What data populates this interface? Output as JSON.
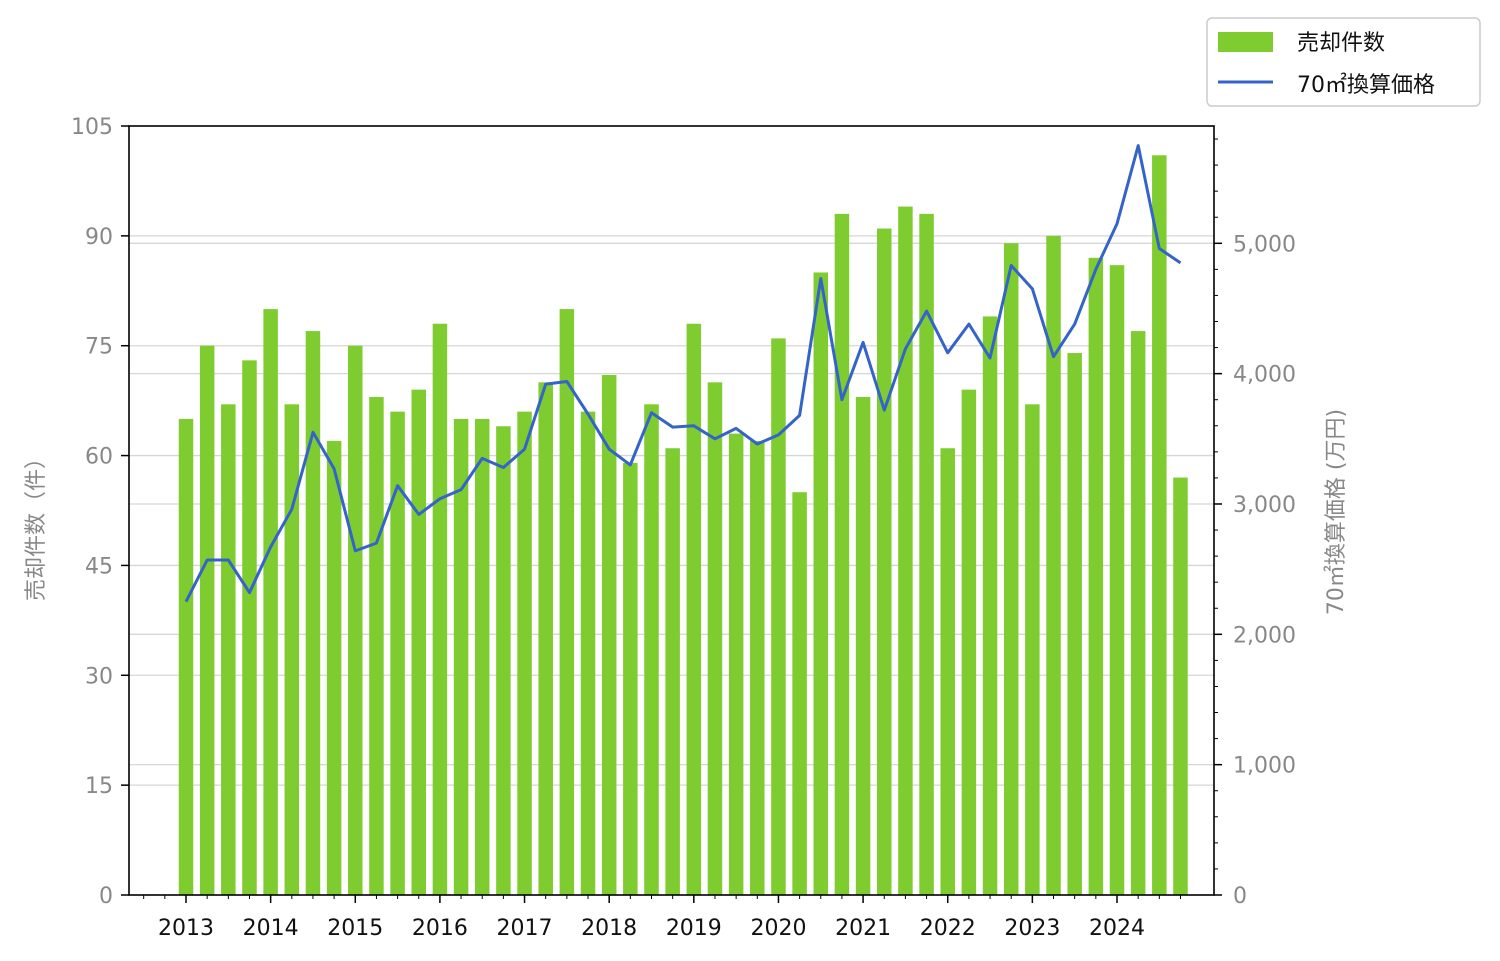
{
  "chart_data": {
    "type": "bar",
    "x_tick_labels": [
      "2013",
      "2014",
      "2015",
      "2016",
      "2017",
      "2018",
      "2019",
      "2020",
      "2021",
      "2022",
      "2023",
      "2024"
    ],
    "left_axis": {
      "label": "売却件数（件）",
      "ylim": [
        0,
        105
      ],
      "ticks": [
        "0",
        "15",
        "30",
        "45",
        "60",
        "75",
        "90",
        "105"
      ],
      "tick_values": [
        0,
        15,
        30,
        45,
        60,
        75,
        90,
        105
      ]
    },
    "right_axis": {
      "label": "70㎡換算価格 (万円)",
      "ylim": [
        0,
        5900
      ],
      "ticks": [
        "0",
        "1,000",
        "2,000",
        "3,000",
        "4,000",
        "5,000"
      ],
      "tick_values": [
        0,
        1000,
        2000,
        3000,
        4000,
        5000
      ]
    },
    "grid": "horizontal",
    "legend": {
      "position": "top-right",
      "entries": [
        {
          "label": "売却件数",
          "kind": "bar",
          "color": "#7fcc30"
        },
        {
          "label": "70㎡換算価格",
          "kind": "line",
          "color": "#3464c8"
        }
      ]
    },
    "series": [
      {
        "name": "売却件数",
        "kind": "bar",
        "axis": "left",
        "color": "#7fcc30",
        "x": [
          2013.0,
          2013.25,
          2013.5,
          2013.75,
          2014.0,
          2014.25,
          2014.5,
          2014.75,
          2015.0,
          2015.25,
          2015.5,
          2015.75,
          2016.0,
          2016.25,
          2016.5,
          2016.75,
          2017.0,
          2017.25,
          2017.5,
          2017.75,
          2018.0,
          2018.25,
          2018.5,
          2018.75,
          2019.0,
          2019.25,
          2019.5,
          2019.75,
          2020.0,
          2020.25,
          2020.5,
          2020.75,
          2021.0,
          2021.25,
          2021.5,
          2021.75,
          2022.0,
          2022.25,
          2022.5,
          2022.75,
          2023.0,
          2023.25,
          2023.5,
          2023.75,
          2024.0,
          2024.25,
          2024.5,
          2024.75
        ],
        "values": [
          65,
          75,
          67,
          73,
          80,
          67,
          77,
          62,
          75,
          68,
          66,
          69,
          78,
          65,
          65,
          64,
          66,
          70,
          80,
          66,
          71,
          59,
          67,
          61,
          78,
          70,
          63,
          62,
          76,
          55,
          85,
          93,
          68,
          91,
          94,
          93,
          61,
          69,
          79,
          89,
          67,
          90,
          74,
          87,
          86,
          77,
          101,
          57
        ]
      },
      {
        "name": "70㎡換算価格",
        "kind": "line",
        "axis": "right",
        "color": "#3464c8",
        "x": [
          2013.0,
          2013.25,
          2013.5,
          2013.75,
          2014.0,
          2014.25,
          2014.5,
          2014.75,
          2015.0,
          2015.25,
          2015.5,
          2015.75,
          2016.0,
          2016.25,
          2016.5,
          2016.75,
          2017.0,
          2017.25,
          2017.5,
          2017.75,
          2018.0,
          2018.25,
          2018.5,
          2018.75,
          2019.0,
          2019.25,
          2019.5,
          2019.75,
          2020.0,
          2020.25,
          2020.5,
          2020.75,
          2021.0,
          2021.25,
          2021.5,
          2021.75,
          2022.0,
          2022.25,
          2022.5,
          2022.75,
          2023.0,
          2023.25,
          2023.5,
          2023.75,
          2024.0,
          2024.25,
          2024.5,
          2024.75
        ],
        "values": [
          2250,
          2570,
          2570,
          2320,
          2670,
          2960,
          3550,
          3270,
          2640,
          2700,
          3140,
          2920,
          3040,
          3110,
          3350,
          3280,
          3420,
          3920,
          3940,
          3690,
          3420,
          3300,
          3700,
          3590,
          3600,
          3500,
          3580,
          3460,
          3530,
          3680,
          4730,
          3800,
          4240,
          3720,
          4190,
          4480,
          4160,
          4380,
          4120,
          4830,
          4650,
          4130,
          4380,
          4800,
          5150,
          5750,
          4960,
          4850
        ]
      }
    ]
  }
}
